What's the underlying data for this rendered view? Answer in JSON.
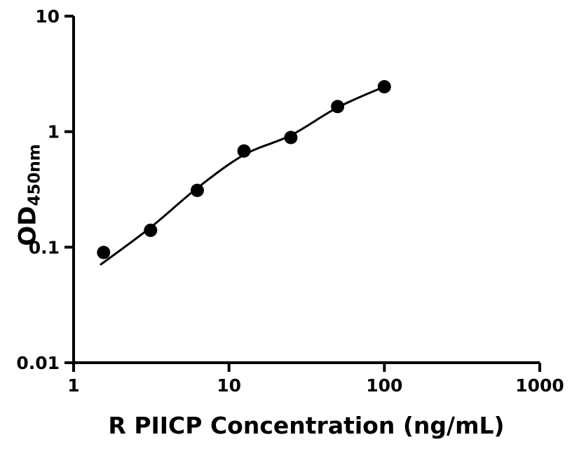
{
  "figure": {
    "background": "#ffffff",
    "ink_color": "#000000"
  },
  "chart_data": {
    "type": "scatter",
    "title": "",
    "xlabel": "R PIICP Concentration (ng/mL)",
    "ylabel_main": "OD",
    "ylabel_sub": "450nm",
    "x_scale": "log",
    "y_scale": "log",
    "xlim": [
      1,
      1000
    ],
    "ylim": [
      0.01,
      10
    ],
    "x_ticks": [
      {
        "value": 1,
        "label": "1"
      },
      {
        "value": 10,
        "label": "10"
      },
      {
        "value": 100,
        "label": "100"
      },
      {
        "value": 1000,
        "label": "1000"
      }
    ],
    "y_ticks": [
      {
        "value": 0.01,
        "label": "0.01"
      },
      {
        "value": 0.1,
        "label": "0.1"
      },
      {
        "value": 1,
        "label": "1"
      },
      {
        "value": 10,
        "label": "10"
      }
    ],
    "grid": false,
    "legend": false,
    "series": [
      {
        "name": "standard-points",
        "marker": "filled-circle",
        "color": "#000000",
        "x": [
          1.56,
          3.13,
          6.25,
          12.5,
          25,
          50,
          100
        ],
        "y": [
          0.09,
          0.14,
          0.31,
          0.68,
          0.89,
          1.65,
          2.45
        ]
      }
    ],
    "fit_curve": {
      "name": "four-parameter-logistic-fit",
      "color": "#000000",
      "x": [
        1.5,
        3.125,
        6.25,
        12.5,
        25,
        50,
        100
      ],
      "y": [
        0.071,
        0.148,
        0.325,
        0.63,
        0.93,
        1.62,
        2.45
      ]
    }
  }
}
